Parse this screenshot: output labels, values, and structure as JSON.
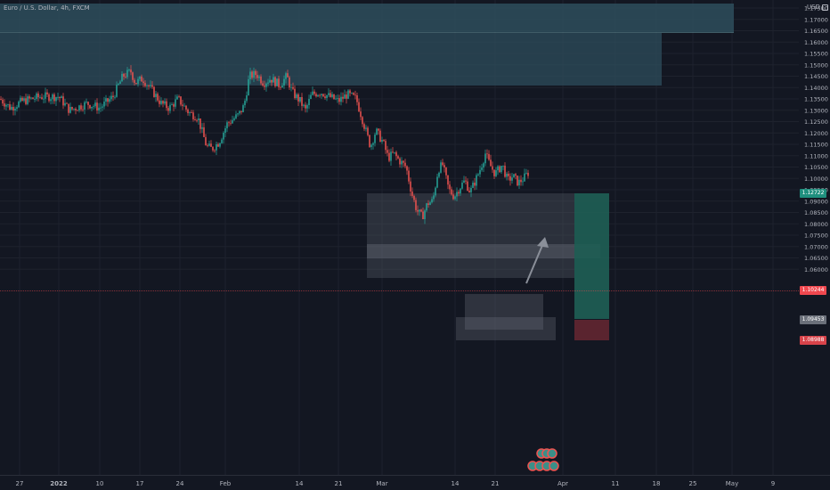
{
  "header": {
    "symbol_title": "Euro / U.S. Dollar, 4h, FXCM",
    "currency": "USD"
  },
  "price_axis": {
    "ticks": [
      "1.17500",
      "1.17000",
      "1.16500",
      "1.16000",
      "1.15500",
      "1.15000",
      "1.14500",
      "1.14000",
      "1.13500",
      "1.13000",
      "1.12500",
      "1.12000",
      "1.11500",
      "1.11000",
      "1.10500",
      "1.10000",
      "1.09500",
      "1.09000",
      "1.08500",
      "1.08000",
      "1.07500",
      "1.07000",
      "1.06500",
      "1.06000"
    ],
    "range": [
      1.056,
      1.1765
    ]
  },
  "price_tags": {
    "target": "1.12722",
    "current": "1.10244",
    "entry": "1.09453",
    "stop": "1.08988"
  },
  "time_axis": {
    "labels": [
      "27",
      "2022",
      "10",
      "17",
      "24",
      "Feb",
      "14",
      "21",
      "Mar",
      "14",
      "21",
      "Apr",
      "11",
      "18",
      "25",
      "May",
      "9"
    ]
  },
  "colors": {
    "background": "#131722",
    "up": "#26a69a",
    "down": "#ef5350",
    "zone": "#2e4e5c",
    "profit": "#1f5f55",
    "loss": "#5e2530",
    "current_price": "#f0484f"
  },
  "chart_data": {
    "type": "candlestick",
    "symbol": "EURUSD",
    "timeframe": "4h",
    "ylim": [
      1.056,
      1.1765
    ],
    "key_closes": [
      {
        "date": "27",
        "close": 1.135
      },
      {
        "date": "10",
        "close": 1.133
      },
      {
        "date": "17",
        "close": 1.146
      },
      {
        "date": "24",
        "close": 1.129
      },
      {
        "date": "Feb",
        "close": 1.114
      },
      {
        "date": "14",
        "close": 1.146
      },
      {
        "date": "21",
        "close": 1.135
      },
      {
        "date": "Mar",
        "close": 1.111
      },
      {
        "date": "14",
        "close": 1.091
      },
      {
        "date": "21",
        "close": 1.104
      },
      {
        "date": "end",
        "close": 1.1024
      }
    ],
    "position": {
      "target": 1.12722,
      "entry": 1.09453,
      "stop": 1.08988
    },
    "current_price": 1.10244
  }
}
